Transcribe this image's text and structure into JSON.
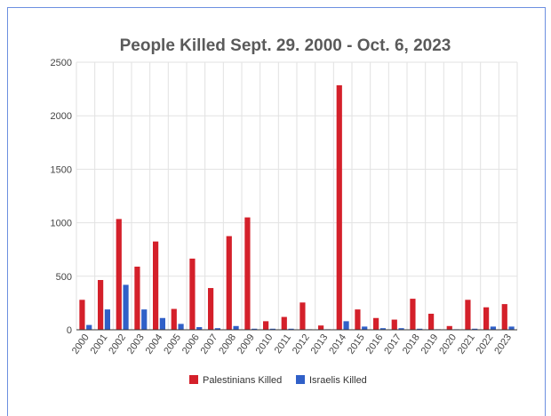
{
  "chart_data": {
    "type": "bar",
    "title": "People Killed Sept. 29. 2000 - Oct. 6, 2023",
    "xlabel": "",
    "ylabel": "",
    "ylim": [
      0,
      2500
    ],
    "yticks": [
      0,
      500,
      1000,
      1500,
      2000,
      2500
    ],
    "grid": true,
    "legend_position": "bottom",
    "categories": [
      "2000",
      "2001",
      "2002",
      "2003",
      "2004",
      "2005",
      "2006",
      "2007",
      "2008",
      "2009",
      "2010",
      "2011",
      "2012",
      "2013",
      "2014",
      "2015",
      "2016",
      "2017",
      "2018",
      "2019",
      "2020",
      "2021",
      "2022",
      "2023"
    ],
    "series": [
      {
        "name": "Palestinians Killed",
        "color": "#d4202a",
        "values": [
          280,
          465,
          1035,
          590,
          825,
          195,
          665,
          390,
          875,
          1050,
          80,
          120,
          255,
          40,
          2285,
          190,
          110,
          95,
          290,
          150,
          35,
          280,
          210,
          240
        ]
      },
      {
        "name": "Israelis Killed",
        "color": "#3060c8",
        "values": [
          45,
          190,
          420,
          190,
          110,
          55,
          25,
          15,
          35,
          10,
          10,
          10,
          5,
          5,
          80,
          30,
          15,
          15,
          10,
          5,
          5,
          10,
          30,
          30
        ]
      }
    ]
  }
}
